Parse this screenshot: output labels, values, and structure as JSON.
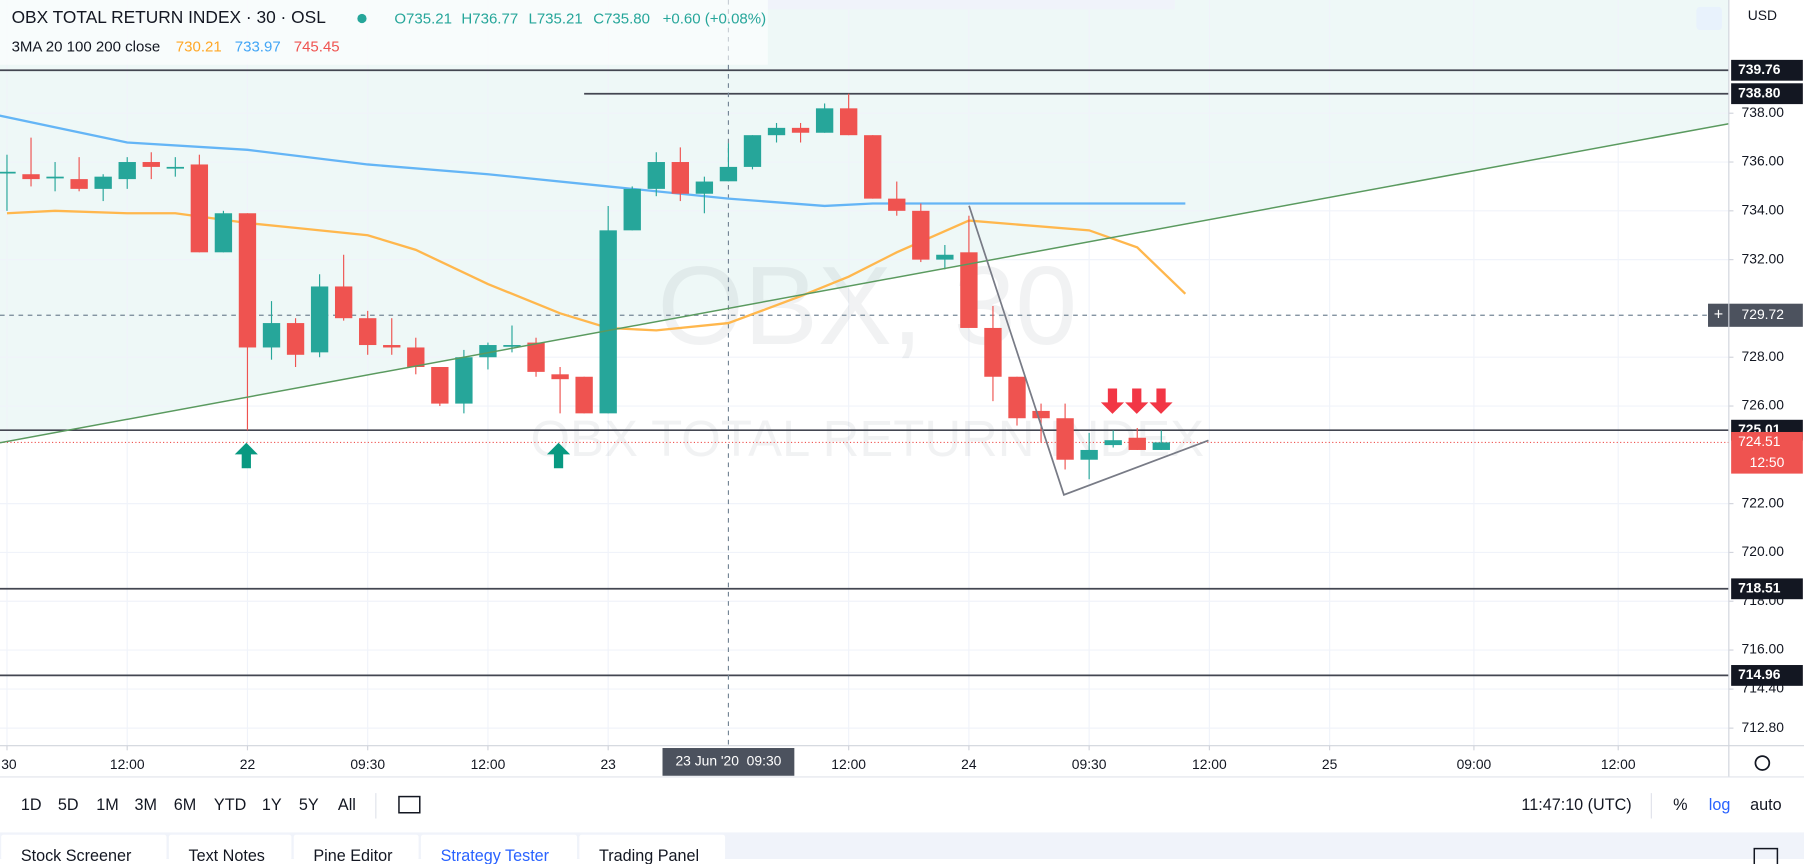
{
  "header": {
    "symbol": "OBX TOTAL RETURN INDEX · 30 · OSL",
    "ohlc": [
      "O735.21",
      "H736.77",
      "L735.21",
      "C735.80"
    ],
    "change": "+0.60 (+0.08%)",
    "ma_label": "3MA 20 100 200 close",
    "ma_values": [
      "730.21",
      "733.97",
      "745.45"
    ],
    "currency": "USD"
  },
  "chart_data": {
    "type": "candlestick",
    "up_color": "#26a69a",
    "down_color": "#ef5350",
    "watermark": [
      "OBX, 30",
      "OBX TOTAL RETURN INDEX"
    ],
    "x": [
      0,
      1,
      2,
      3,
      4,
      5,
      6,
      7,
      8,
      9,
      10,
      11,
      12,
      13,
      14,
      15,
      16,
      17,
      18,
      19,
      20,
      21,
      22,
      23,
      24,
      25,
      26,
      27,
      28,
      29,
      30,
      31,
      32,
      33,
      34,
      35,
      36,
      37,
      38,
      39,
      40,
      41,
      42,
      43,
      44,
      45,
      46,
      47,
      48
    ],
    "open": [
      735.6,
      735.5,
      735.4,
      735.3,
      734.9,
      735.3,
      736.0,
      735.8,
      735.9,
      732.3,
      733.9,
      728.4,
      729.4,
      728.2,
      730.9,
      729.6,
      728.5,
      728.4,
      727.6,
      726.1,
      728.0,
      728.5,
      728.6,
      727.3,
      727.2,
      725.7,
      733.2,
      734.9,
      736.0,
      734.7,
      735.21,
      735.8,
      737.1,
      737.4,
      737.2,
      738.2,
      737.1,
      734.5,
      734.0,
      732.0,
      732.3,
      729.2,
      727.2,
      725.8,
      725.5,
      723.8,
      724.4,
      724.7,
      724.2
    ],
    "high": [
      736.3,
      737.0,
      736.0,
      736.2,
      735.5,
      736.2,
      736.4,
      736.2,
      736.3,
      734.0,
      733.9,
      730.3,
      729.6,
      731.4,
      732.2,
      729.9,
      729.6,
      728.8,
      727.6,
      728.3,
      728.6,
      729.3,
      728.8,
      727.6,
      727.2,
      734.2,
      735.0,
      736.4,
      736.6,
      735.4,
      736.77,
      737.1,
      737.6,
      737.6,
      738.4,
      738.8,
      737.1,
      735.2,
      734.3,
      732.6,
      733.8,
      730.1,
      727.2,
      726.1,
      726.1,
      724.9,
      725.0,
      725.1,
      725.0
    ],
    "low": [
      734.0,
      735.0,
      734.8,
      734.8,
      734.4,
      734.9,
      735.3,
      735.4,
      732.3,
      732.3,
      725.0,
      727.9,
      727.6,
      728.0,
      729.5,
      728.1,
      728.1,
      727.3,
      726.0,
      725.7,
      727.5,
      728.2,
      727.2,
      725.7,
      725.7,
      725.7,
      733.2,
      734.6,
      734.4,
      733.9,
      735.21,
      735.7,
      736.8,
      736.8,
      737.2,
      737.1,
      734.5,
      733.8,
      731.9,
      731.6,
      729.4,
      726.2,
      725.2,
      724.5,
      723.4,
      723.0,
      724.3,
      724.2,
      724.2
    ],
    "close": [
      735.6,
      735.3,
      735.4,
      734.9,
      735.4,
      736.0,
      735.8,
      735.8,
      732.3,
      733.9,
      728.4,
      729.4,
      728.1,
      730.9,
      729.6,
      728.5,
      728.4,
      727.6,
      726.1,
      728.0,
      728.5,
      728.5,
      727.4,
      727.1,
      725.7,
      733.2,
      734.9,
      736.0,
      734.7,
      735.2,
      735.8,
      737.1,
      737.4,
      737.2,
      738.2,
      737.1,
      734.5,
      734.0,
      732.0,
      732.2,
      729.2,
      727.2,
      725.5,
      725.5,
      723.8,
      724.2,
      724.6,
      724.2,
      724.51
    ],
    "series": [
      {
        "name": "MA 100",
        "color": "#64b5f6",
        "x": [
          -0.3,
          5,
          10,
          15,
          20,
          25,
          30,
          34,
          36,
          40,
          49
        ],
        "values": [
          737.9,
          736.8,
          736.5,
          735.9,
          735.5,
          735.0,
          734.5,
          734.2,
          734.3,
          734.3,
          734.3
        ]
      },
      {
        "name": "MA 20",
        "color": "#ffb74d",
        "x": [
          0,
          2,
          5,
          7,
          10,
          12,
          15,
          17,
          20,
          23,
          25,
          27,
          30,
          33,
          35,
          37,
          40,
          45,
          47,
          49
        ],
        "values": [
          733.9,
          734.0,
          733.9,
          733.9,
          733.5,
          733.3,
          733.0,
          732.4,
          731.0,
          729.8,
          729.2,
          729.1,
          729.4,
          730.5,
          731.3,
          732.3,
          733.6,
          733.2,
          732.5,
          730.6
        ]
      }
    ],
    "xlim": [
      -0.29,
      71.6
    ],
    "xticks": [
      {
        "value": 0,
        "label": ":30"
      },
      {
        "value": 5,
        "label": "12:00"
      },
      {
        "value": 10,
        "label": "22"
      },
      {
        "value": 15,
        "label": "09:30"
      },
      {
        "value": 20,
        "label": "12:00"
      },
      {
        "value": 25,
        "label": "23"
      },
      {
        "value": 35,
        "label": "12:00"
      },
      {
        "value": 40,
        "label": "24"
      },
      {
        "value": 45,
        "label": "09:30"
      },
      {
        "value": 50,
        "label": "12:00"
      },
      {
        "value": 55,
        "label": "25"
      },
      {
        "value": 61,
        "label": "09:00"
      },
      {
        "value": 67,
        "label": "12:00"
      }
    ],
    "ylim": [
      712.08,
      742.64
    ],
    "yticks": [
      {
        "value": 738,
        "label": "738.00"
      },
      {
        "value": 736,
        "label": "736.00"
      },
      {
        "value": 734,
        "label": "734.00"
      },
      {
        "value": 732,
        "label": "732.00"
      },
      {
        "value": 728,
        "label": "728.00"
      },
      {
        "value": 726,
        "label": "726.00"
      },
      {
        "value": 722,
        "label": "722.00"
      },
      {
        "value": 720,
        "label": "720.00"
      },
      {
        "value": 718,
        "label": "718.00"
      },
      {
        "value": 716,
        "label": "716.00"
      },
      {
        "value": 714.4,
        "label": "714.40"
      },
      {
        "value": 712.8,
        "label": "712.80"
      }
    ],
    "grid": true,
    "levels": [
      {
        "value": 739.76,
        "label": "739.76"
      },
      {
        "value": 738.8,
        "label": "738.80",
        "x_start": 24
      },
      {
        "value": 725.01,
        "label": "725.01"
      },
      {
        "value": 718.51,
        "label": "718.51"
      },
      {
        "value": 714.96,
        "label": "714.96"
      }
    ],
    "last_price": {
      "value": 724.51,
      "label": "724.51",
      "countdown": "12:50"
    },
    "crosshair": {
      "x": 30,
      "value": 729.72,
      "price_label": "729.72",
      "time_label": "23 Jun '20  09:30"
    }
  },
  "toolbar": {
    "ranges": [
      "1D",
      "5D",
      "1M",
      "3M",
      "6M",
      "YTD",
      "1Y",
      "5Y",
      "All"
    ],
    "clock": "11:47:10 (UTC)",
    "percent": "%",
    "log": "log",
    "auto": "auto"
  },
  "tabs": [
    "Stock Screener",
    "Text Notes",
    "Pine Editor",
    "Strategy Tester",
    "Trading Panel"
  ]
}
